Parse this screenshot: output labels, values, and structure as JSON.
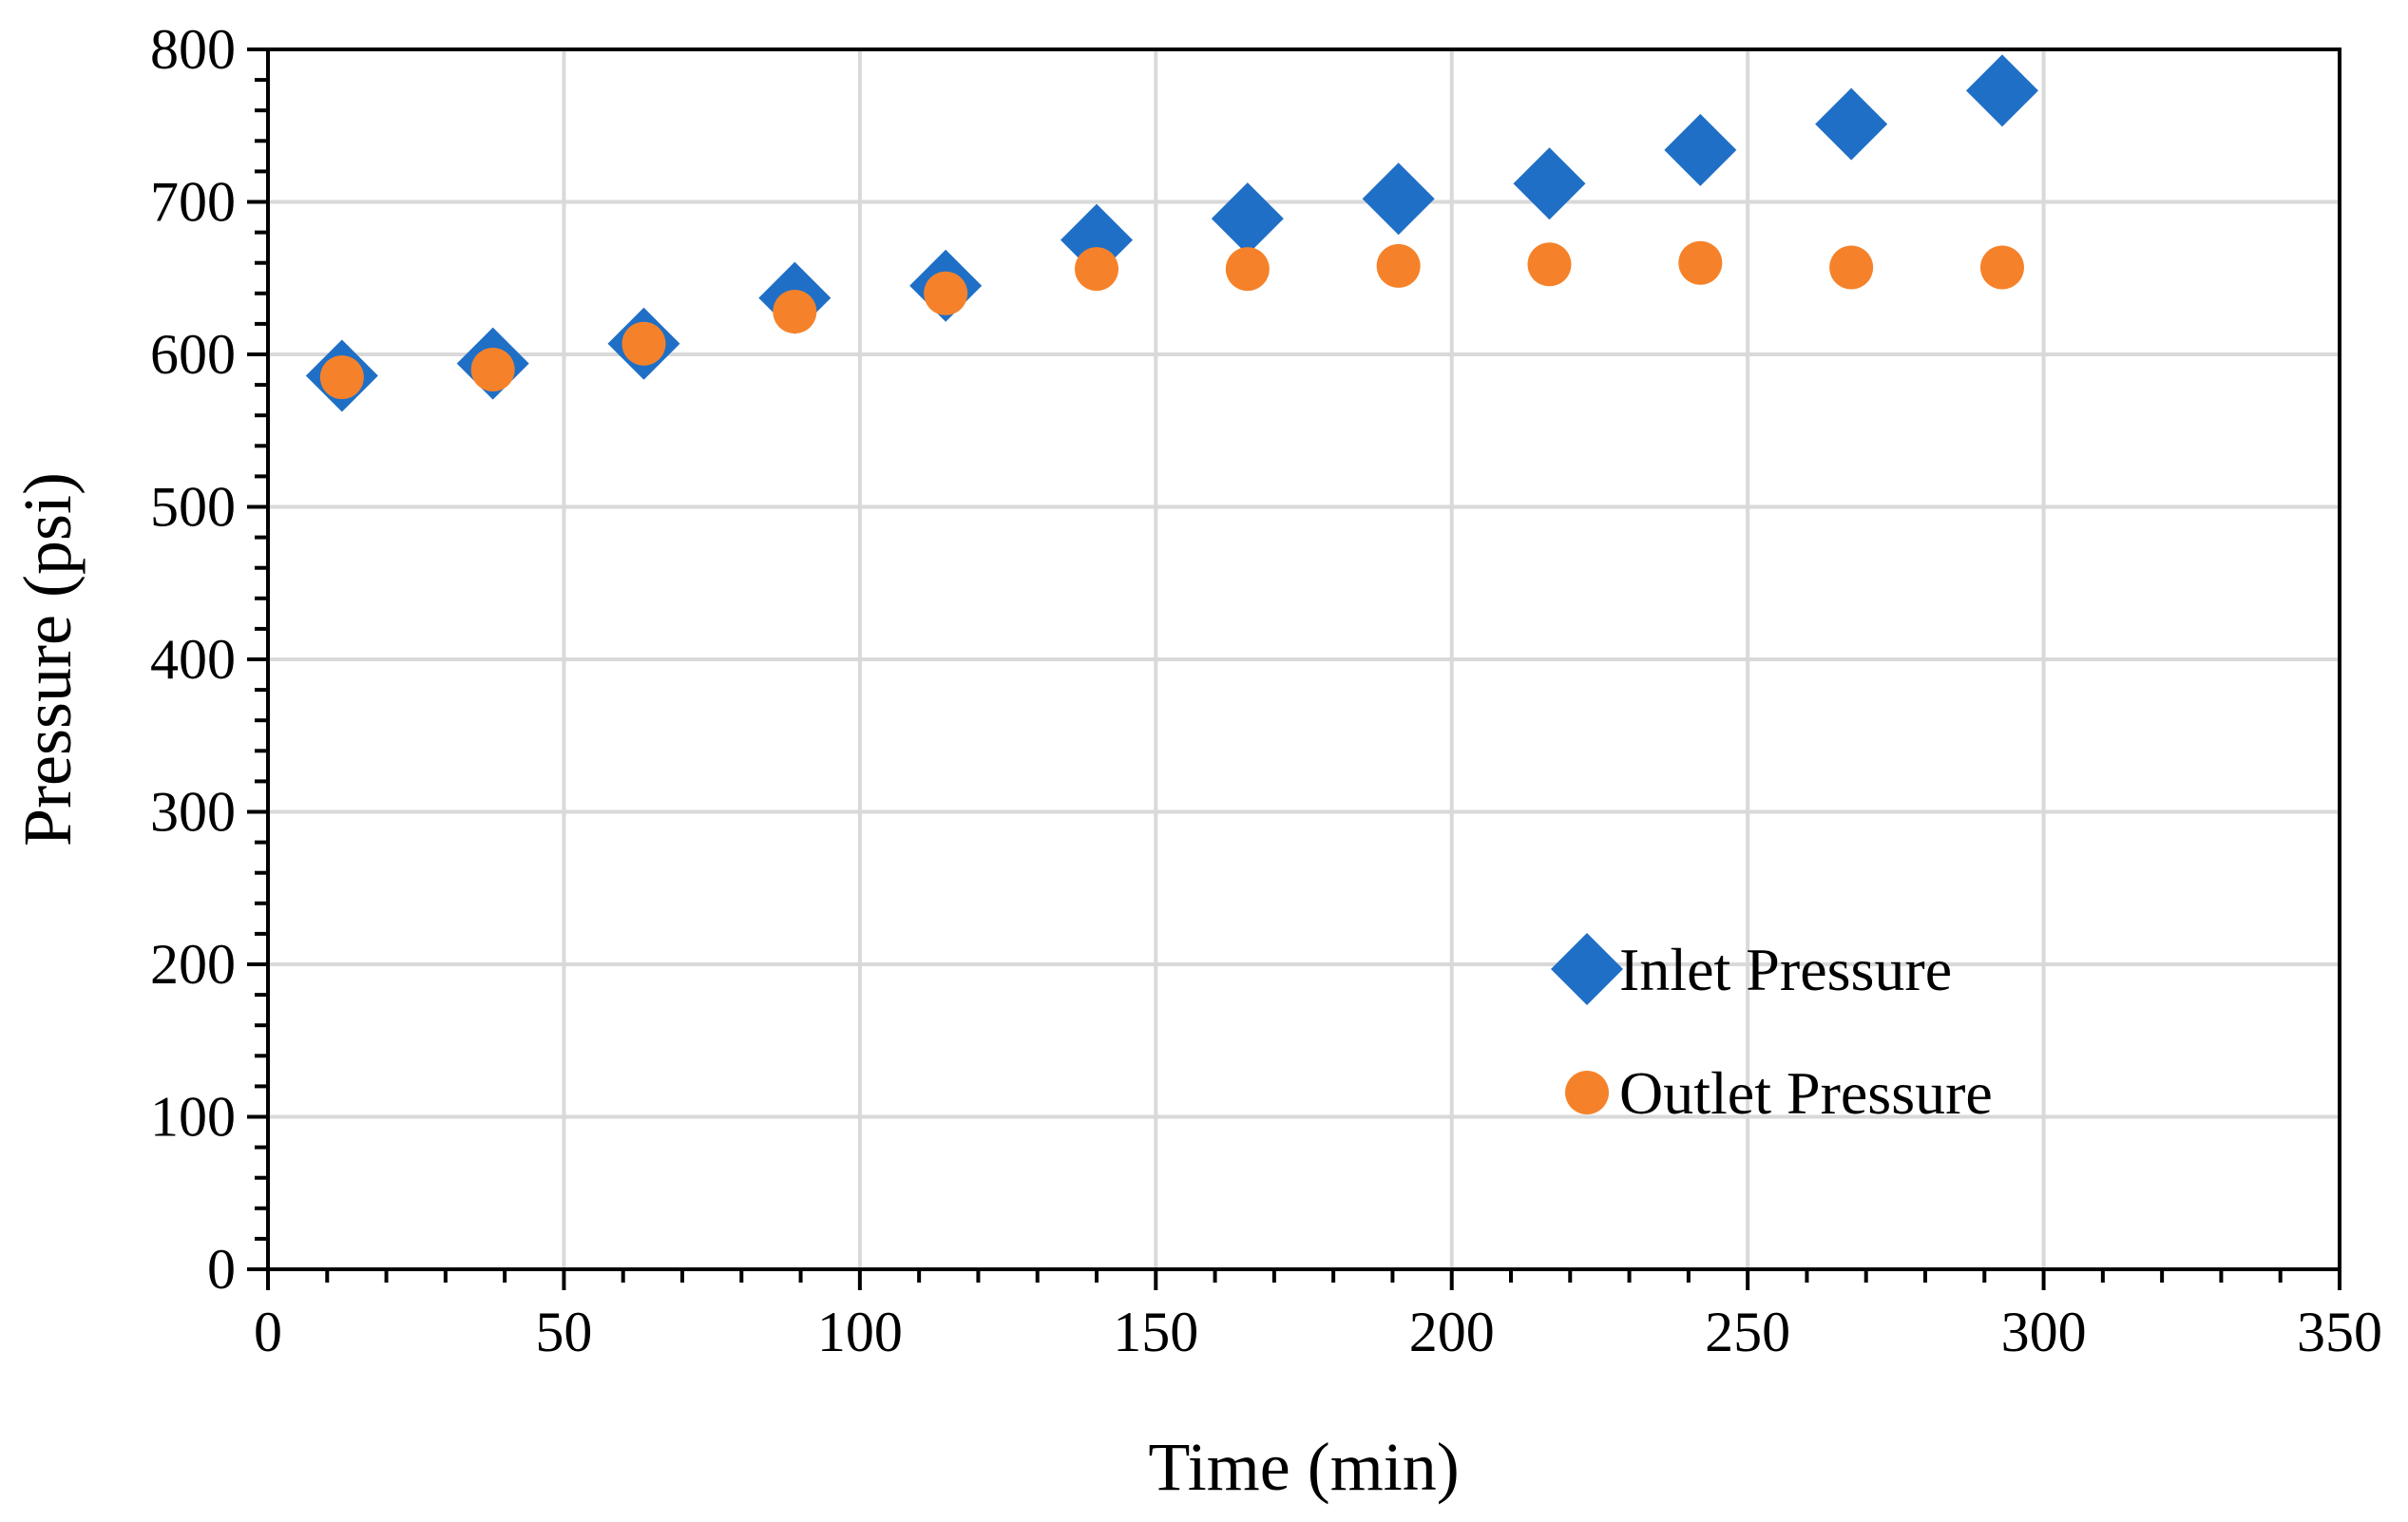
{
  "chart_data": {
    "type": "scatter",
    "title": "",
    "xlabel": "Time (min)",
    "ylabel": "Pressure (psi)",
    "xlim": [
      0,
      350
    ],
    "ylim": [
      0,
      800
    ],
    "x_ticks": [
      0,
      50,
      100,
      150,
      200,
      250,
      300,
      350
    ],
    "y_ticks": [
      0,
      100,
      200,
      300,
      400,
      500,
      600,
      700,
      800
    ],
    "x_tick_labels": [
      "0",
      "50",
      "100",
      "150",
      "200",
      "250",
      "300",
      "350"
    ],
    "y_tick_labels": [
      "0",
      "100",
      "200",
      "300",
      "400",
      "500",
      "600",
      "700",
      "800"
    ],
    "grid": true,
    "legend_position": "bottom-right",
    "series": [
      {
        "name": "Inlet Pressure",
        "marker": "diamond",
        "color": "#1f6fc6",
        "x": [
          12.5,
          38,
          63.5,
          89,
          114.5,
          140,
          165.5,
          191,
          216.5,
          242,
          267.5,
          293
        ],
        "y": [
          586,
          594,
          607,
          637,
          645,
          675,
          689,
          702,
          712,
          734,
          751,
          773
        ]
      },
      {
        "name": "Outlet Pressure",
        "marker": "circle",
        "color": "#f5822a",
        "x": [
          12.5,
          38,
          63.5,
          89,
          114.5,
          140,
          165.5,
          191,
          216.5,
          242,
          267.5,
          293
        ],
        "y": [
          585,
          590,
          607,
          628,
          640,
          656,
          656,
          658,
          659,
          660,
          657,
          657
        ]
      }
    ]
  }
}
